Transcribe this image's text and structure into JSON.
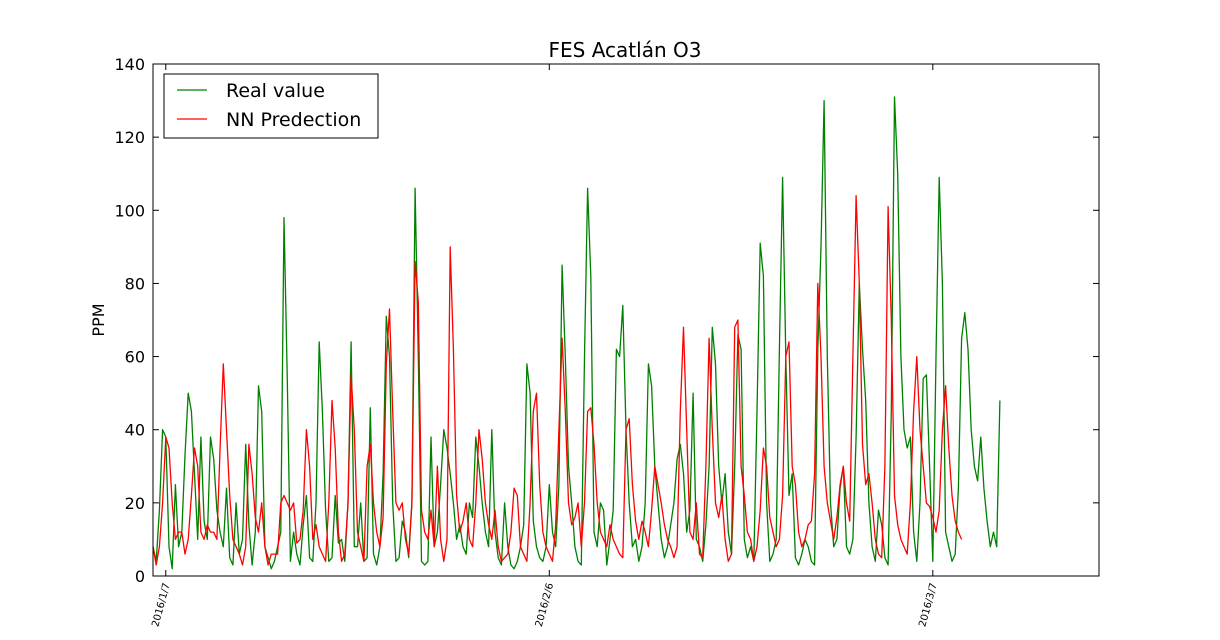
{
  "chart_data": {
    "type": "line",
    "title": "FES Acatlán O3",
    "xlabel": "",
    "ylabel": "PPM",
    "ylim": [
      0,
      140
    ],
    "yticks": [
      0,
      20,
      40,
      60,
      80,
      100,
      120,
      140
    ],
    "xlim": [
      "2016-01-06",
      "2016-03-20"
    ],
    "x_ticks": [
      {
        "date": "2016-01-07",
        "label": "2016/1/7"
      },
      {
        "date": "2016-02-06",
        "label": "2016/2/6"
      },
      {
        "date": "2016-03-07",
        "label": "2016/3/7"
      }
    ],
    "grid": false,
    "legend_position": "top-left",
    "x_start": "2016-01-06",
    "x_step_hours": 6,
    "series": [
      {
        "name": "Real value",
        "color": "#008000",
        "values": [
          8,
          4,
          18,
          40,
          38,
          8,
          2,
          25,
          8,
          12,
          33,
          50,
          45,
          28,
          10,
          38,
          15,
          10,
          38,
          32,
          18,
          12,
          8,
          24,
          5,
          3,
          20,
          6,
          10,
          36,
          14,
          3,
          12,
          52,
          45,
          8,
          5,
          2,
          4,
          8,
          12,
          98,
          55,
          4,
          12,
          6,
          3,
          14,
          22,
          5,
          4,
          20,
          64,
          45,
          18,
          4,
          5,
          22,
          9,
          10,
          4,
          20,
          64,
          8,
          8,
          20,
          4,
          5,
          46,
          6,
          3,
          8,
          28,
          71,
          60,
          20,
          4,
          5,
          15,
          12,
          5,
          20,
          106,
          60,
          4,
          3,
          4,
          38,
          8,
          12,
          25,
          40,
          35,
          28,
          20,
          10,
          14,
          8,
          6,
          20,
          16,
          38,
          30,
          20,
          12,
          8,
          40,
          12,
          5,
          3,
          20,
          8,
          3,
          2,
          4,
          8,
          14,
          58,
          50,
          15,
          8,
          5,
          4,
          8,
          25,
          12,
          8,
          25,
          85,
          60,
          30,
          20,
          8,
          4,
          3,
          60,
          106,
          82,
          12,
          8,
          20,
          18,
          3,
          10,
          18,
          62,
          60,
          74,
          40,
          20,
          8,
          10,
          4,
          8,
          20,
          58,
          52,
          30,
          20,
          10,
          5,
          8,
          14,
          20,
          32,
          36,
          28,
          12,
          18,
          50,
          10,
          8,
          4,
          14,
          30,
          68,
          58,
          30,
          20,
          28,
          12,
          6,
          30,
          66,
          62,
          10,
          5,
          8,
          4,
          45,
          91,
          82,
          20,
          4,
          6,
          10,
          62,
          109,
          60,
          22,
          28,
          5,
          3,
          6,
          10,
          8,
          4,
          3,
          62,
          90,
          130,
          60,
          20,
          8,
          10,
          24,
          30,
          8,
          6,
          10,
          38,
          80,
          62,
          48,
          20,
          8,
          4,
          18,
          14,
          5,
          3,
          45,
          131,
          110,
          60,
          40,
          35,
          38,
          12,
          4,
          20,
          54,
          55,
          30,
          4,
          60,
          109,
          80,
          12,
          8,
          4,
          6,
          24,
          65,
          72,
          62,
          40,
          30,
          26,
          38,
          24,
          15,
          8,
          12,
          8,
          48
        ]
      },
      {
        "name": "NN Predection",
        "color": "#ff0000",
        "values": [
          8,
          3,
          8,
          20,
          38,
          35,
          20,
          10,
          12,
          12,
          6,
          10,
          22,
          35,
          30,
          12,
          10,
          14,
          12,
          12,
          10,
          35,
          58,
          40,
          22,
          10,
          8,
          6,
          3,
          8,
          36,
          28,
          16,
          12,
          20,
          8,
          3,
          6,
          6,
          6,
          20,
          22,
          20,
          18,
          20,
          9,
          10,
          18,
          40,
          30,
          10,
          14,
          8,
          6,
          4,
          20,
          48,
          35,
          12,
          4,
          6,
          20,
          55,
          40,
          12,
          8,
          4,
          30,
          36,
          20,
          12,
          8,
          16,
          58,
          73,
          45,
          20,
          18,
          20,
          10,
          6,
          20,
          86,
          75,
          18,
          12,
          10,
          18,
          8,
          30,
          10,
          4,
          10,
          90,
          62,
          22,
          12,
          15,
          20,
          10,
          8,
          20,
          40,
          32,
          20,
          14,
          10,
          18,
          8,
          4,
          5,
          6,
          12,
          24,
          22,
          8,
          6,
          4,
          20,
          45,
          50,
          25,
          12,
          8,
          6,
          4,
          14,
          40,
          65,
          45,
          20,
          14,
          16,
          20,
          8,
          20,
          45,
          46,
          36,
          20,
          12,
          10,
          8,
          14,
          10,
          8,
          6,
          5,
          40,
          43,
          25,
          15,
          10,
          15,
          12,
          8,
          18,
          30,
          25,
          20,
          14,
          10,
          8,
          5,
          8,
          45,
          68,
          40,
          12,
          10,
          20,
          6,
          5,
          30,
          65,
          40,
          20,
          16,
          22,
          10,
          4,
          6,
          68,
          70,
          30,
          22,
          12,
          10,
          4,
          8,
          18,
          35,
          30,
          16,
          12,
          8,
          10,
          22,
          60,
          64,
          30,
          25,
          12,
          8,
          10,
          14,
          15,
          28,
          80,
          60,
          30,
          20,
          15,
          10,
          16,
          25,
          30,
          20,
          15,
          60,
          104,
          80,
          36,
          25,
          28,
          20,
          10,
          6,
          5,
          30,
          101,
          70,
          22,
          14,
          10,
          8,
          6,
          20,
          45,
          60,
          40,
          30,
          20,
          19,
          16,
          12,
          18,
          40,
          52,
          35,
          22,
          15,
          12,
          10
        ]
      }
    ]
  }
}
